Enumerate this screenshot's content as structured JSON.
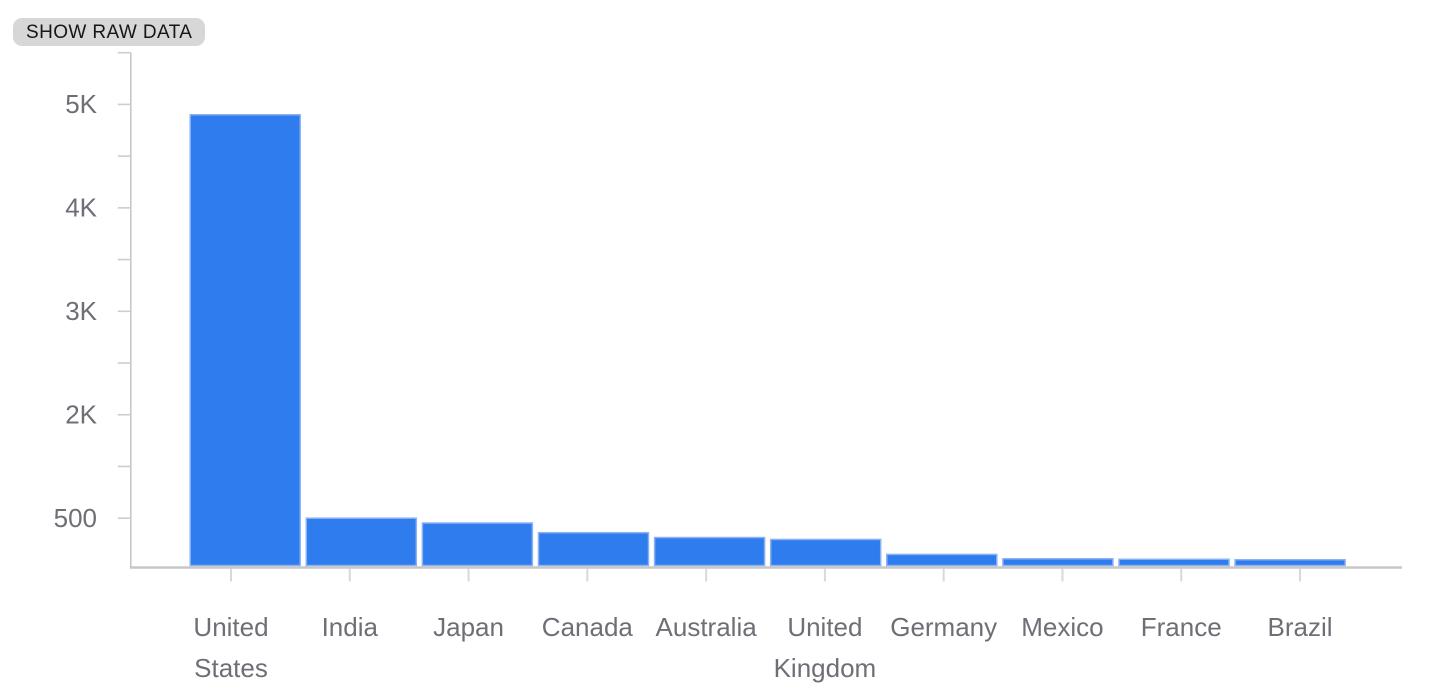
{
  "toolbar": {
    "show_raw_data_label": "SHOW RAW DATA"
  },
  "colors": {
    "background": "#ffffff",
    "bar_fill": "#2e7cee",
    "bar_stroke": "#8ab1f2",
    "axis_line": "#c7c7c7",
    "y_tick": "#cdcdcd",
    "x_tick": "#d9d9d9",
    "axis_label_text": "#6e6f76",
    "button_bg": "#d7d7d7",
    "button_text": "#161616"
  },
  "chart_data": {
    "type": "bar",
    "title": "",
    "xlabel": "",
    "ylabel": "",
    "categories": [
      "United States",
      "India",
      "Japan",
      "Canada",
      "Australia",
      "United Kingdom",
      "Germany",
      "Mexico",
      "France",
      "Brazil"
    ],
    "values": [
      4900,
      500,
      450,
      350,
      300,
      280,
      125,
      80,
      75,
      70
    ],
    "y_axis": {
      "tick_labels": [
        "500",
        "2K",
        "3K",
        "4K",
        "5K"
      ],
      "tick_values": [
        500,
        2000,
        3000,
        4000,
        5000
      ],
      "minor_ticks": true,
      "axis_starts_above_zero": true
    },
    "grid": false,
    "legend": "none"
  }
}
